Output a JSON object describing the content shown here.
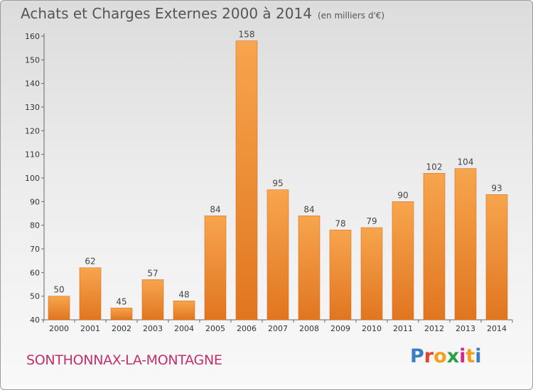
{
  "header": {
    "title": "Achats et Charges Externes 2000 à 2014",
    "subtitle": "(en milliers d'€)"
  },
  "footer": {
    "town": "SONTHONNAX-LA-MONTAGNE",
    "logo_letters": [
      "P",
      "r",
      "o",
      "x",
      "i",
      "t",
      "i"
    ]
  },
  "colors": {
    "bar_light": "#f7a54e",
    "bar_dark": "#e0761f",
    "town": "#c0306b",
    "logo": [
      "#3b7dc4",
      "#e8412c",
      "#f3a01a",
      "#2c9e46",
      "#d9268c",
      "#f3a01a",
      "#3b7dc4"
    ]
  },
  "chart_data": {
    "type": "bar",
    "categories": [
      "2000",
      "2001",
      "2002",
      "2003",
      "2004",
      "2005",
      "2006",
      "2007",
      "2008",
      "2009",
      "2010",
      "2011",
      "2012",
      "2013",
      "2014"
    ],
    "values": [
      50,
      62,
      45,
      57,
      48,
      84,
      158,
      95,
      84,
      78,
      79,
      90,
      102,
      104,
      93
    ],
    "ylim": [
      40,
      160
    ],
    "yticks": [
      40,
      50,
      60,
      70,
      80,
      90,
      100,
      110,
      120,
      130,
      140,
      150,
      160
    ],
    "grid": false,
    "data_labels": true
  }
}
